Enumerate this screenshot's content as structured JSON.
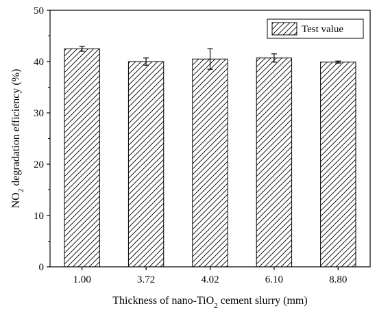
{
  "chart_data": {
    "type": "bar",
    "categories": [
      "1.00",
      "3.72",
      "4.02",
      "6.10",
      "8.80"
    ],
    "series": [
      {
        "name": "Test value",
        "values": [
          42.5,
          40.0,
          40.5,
          40.7,
          39.9
        ],
        "errors": [
          0.5,
          0.7,
          2.0,
          0.8,
          0.2
        ]
      }
    ],
    "xlabel": {
      "prefix": "Thickness of nano-TiO",
      "sub": "2",
      "suffix": " cement slurry (mm)"
    },
    "ylabel": {
      "prefix": "NO",
      "sub": "2",
      "suffix": " degradation efficiency (%)"
    },
    "ylim": [
      0,
      50
    ],
    "yticks": [
      "0",
      "10",
      "20",
      "30",
      "40",
      "50"
    ],
    "grid": false,
    "legend_position": "top-right",
    "bar_pattern": "diagonal-hatch",
    "colors": {
      "bar_fill": "#ffffff",
      "hatch": "#000000",
      "axis": "#000000"
    }
  }
}
